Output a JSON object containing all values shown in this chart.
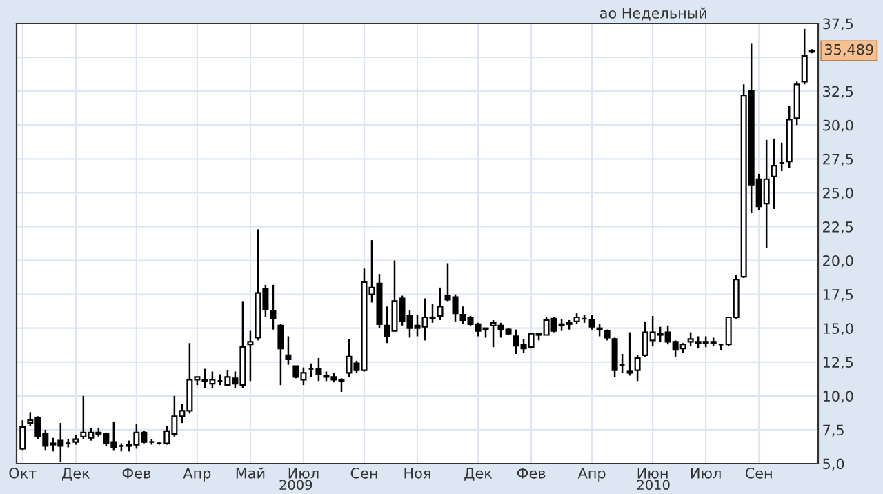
{
  "chart_data": {
    "type": "candlestick",
    "title": "ао Недельный",
    "categories": [
      "Окт",
      null,
      null,
      null,
      null,
      null,
      null,
      "Дек",
      null,
      null,
      null,
      null,
      null,
      null,
      null,
      "Фев",
      null,
      null,
      null,
      null,
      null,
      null,
      null,
      "Апр",
      null,
      null,
      null,
      null,
      null,
      null,
      "Май",
      null,
      null,
      null,
      null,
      null,
      null,
      "Июл",
      null,
      null,
      null,
      null,
      null,
      null,
      null,
      "Сен",
      null,
      null,
      null,
      null,
      null,
      null,
      "Ноя",
      null,
      null,
      null,
      null,
      null,
      null,
      null,
      "Дек",
      null,
      null,
      null,
      null,
      null,
      null,
      "Фев",
      null,
      null,
      null,
      null,
      null,
      null,
      null,
      "Апр",
      null,
      null,
      null,
      null,
      null,
      null,
      null,
      "Июн",
      null,
      null,
      null,
      null,
      null,
      null,
      "Июл",
      null,
      null,
      null,
      null,
      null,
      null,
      "Сен",
      null,
      null,
      null,
      null,
      null,
      null,
      null
    ],
    "ohlc": [
      [
        6.1,
        8.2,
        6.0,
        7.7
      ],
      [
        8.0,
        8.8,
        7.8,
        8.2
      ],
      [
        8.4,
        8.5,
        6.8,
        7.0
      ],
      [
        7.2,
        7.5,
        6.0,
        6.3
      ],
      [
        6.5,
        6.9,
        5.9,
        6.4
      ],
      [
        6.7,
        8.0,
        5.1,
        6.3
      ],
      [
        6.5,
        6.8,
        6.2,
        6.5
      ],
      [
        6.6,
        7.1,
        6.4,
        6.8
      ],
      [
        7.0,
        10.0,
        6.8,
        7.3
      ],
      [
        6.9,
        7.6,
        6.7,
        7.3
      ],
      [
        7.3,
        7.6,
        7.0,
        7.2
      ],
      [
        7.2,
        7.3,
        6.3,
        6.5
      ],
      [
        6.6,
        8.1,
        6.0,
        6.2
      ],
      [
        6.3,
        6.5,
        5.9,
        6.3
      ],
      [
        6.3,
        6.7,
        5.9,
        6.4
      ],
      [
        6.4,
        7.9,
        6.1,
        7.3
      ],
      [
        7.3,
        7.4,
        6.5,
        6.6
      ],
      [
        6.6,
        6.8,
        6.4,
        6.6
      ],
      [
        6.5,
        6.6,
        6.4,
        6.5
      ],
      [
        6.5,
        7.8,
        6.4,
        7.4
      ],
      [
        7.2,
        10.0,
        7.0,
        8.5
      ],
      [
        8.5,
        9.4,
        8.0,
        8.9
      ],
      [
        8.9,
        13.9,
        8.7,
        11.2
      ],
      [
        11.2,
        11.4,
        10.8,
        11.4
      ],
      [
        11.2,
        12.0,
        10.6,
        11.1
      ],
      [
        10.9,
        11.8,
        10.6,
        11.2
      ],
      [
        11.1,
        11.6,
        10.8,
        11.1
      ],
      [
        10.8,
        11.9,
        10.7,
        11.4
      ],
      [
        11.3,
        11.8,
        10.6,
        10.9
      ],
      [
        10.8,
        17.0,
        10.6,
        13.6
      ],
      [
        13.8,
        14.8,
        11.1,
        14.0
      ],
      [
        14.3,
        22.3,
        14.1,
        17.6
      ],
      [
        17.9,
        18.2,
        15.8,
        16.4
      ],
      [
        16.3,
        18.2,
        14.9,
        15.7
      ],
      [
        15.2,
        15.3,
        10.8,
        13.5
      ],
      [
        13.0,
        14.4,
        12.3,
        12.7
      ],
      [
        12.2,
        12.2,
        11.3,
        11.4
      ],
      [
        11.2,
        12.1,
        10.8,
        11.7
      ],
      [
        12.0,
        12.4,
        11.4,
        12.0
      ],
      [
        12.0,
        12.8,
        11.1,
        11.6
      ],
      [
        11.5,
        11.8,
        11.1,
        11.4
      ],
      [
        11.4,
        11.7,
        11.0,
        11.2
      ],
      [
        11.1,
        11.3,
        10.3,
        11.2
      ],
      [
        11.7,
        14.2,
        11.4,
        12.9
      ],
      [
        12.4,
        12.6,
        11.7,
        11.9
      ],
      [
        11.9,
        19.4,
        11.8,
        18.4
      ],
      [
        17.5,
        21.5,
        16.9,
        18.0
      ],
      [
        18.3,
        19.0,
        15.0,
        15.3
      ],
      [
        15.2,
        16.6,
        13.9,
        14.4
      ],
      [
        14.8,
        20.0,
        14.8,
        17.0
      ],
      [
        17.2,
        17.4,
        15.2,
        15.5
      ],
      [
        15.9,
        16.3,
        14.3,
        15.0
      ],
      [
        15.2,
        16.0,
        14.4,
        15.0
      ],
      [
        15.1,
        17.2,
        14.1,
        15.8
      ],
      [
        15.7,
        16.8,
        15.4,
        15.8
      ],
      [
        15.9,
        18.0,
        15.6,
        16.6
      ],
      [
        17.4,
        19.8,
        17.0,
        17.1
      ],
      [
        17.3,
        17.5,
        15.5,
        16.1
      ],
      [
        16.0,
        16.6,
        15.3,
        15.6
      ],
      [
        15.8,
        15.9,
        15.2,
        15.3
      ],
      [
        15.3,
        15.4,
        14.4,
        14.8
      ],
      [
        14.9,
        15.0,
        14.3,
        15.0
      ],
      [
        15.2,
        15.6,
        13.6,
        15.4
      ],
      [
        15.2,
        15.4,
        14.3,
        14.9
      ],
      [
        14.9,
        15.0,
        14.5,
        14.6
      ],
      [
        14.4,
        14.9,
        13.1,
        13.7
      ],
      [
        13.8,
        14.2,
        13.2,
        13.5
      ],
      [
        13.6,
        14.6,
        13.5,
        14.6
      ],
      [
        14.5,
        14.6,
        14.1,
        14.6
      ],
      [
        14.5,
        15.8,
        14.5,
        15.6
      ],
      [
        15.7,
        15.8,
        14.7,
        14.8
      ],
      [
        15.3,
        15.7,
        14.8,
        15.2
      ],
      [
        15.3,
        15.6,
        14.9,
        15.4
      ],
      [
        15.5,
        16.1,
        15.3,
        15.8
      ],
      [
        15.7,
        16.0,
        15.4,
        15.7
      ],
      [
        15.6,
        16.0,
        14.9,
        15.1
      ],
      [
        15.0,
        15.3,
        14.4,
        14.9
      ],
      [
        14.8,
        14.9,
        14.1,
        14.3
      ],
      [
        14.2,
        14.3,
        11.4,
        11.9
      ],
      [
        12.3,
        13.1,
        11.7,
        12.3
      ],
      [
        11.7,
        14.7,
        11.5,
        11.8
      ],
      [
        11.9,
        13.0,
        11.1,
        12.8
      ],
      [
        13.0,
        15.5,
        12.9,
        14.7
      ],
      [
        14.1,
        15.9,
        13.7,
        14.7
      ],
      [
        14.5,
        15.1,
        14.0,
        14.6
      ],
      [
        14.7,
        15.2,
        13.8,
        14.0
      ],
      [
        14.0,
        14.1,
        12.9,
        13.4
      ],
      [
        13.5,
        13.9,
        13.2,
        13.8
      ],
      [
        14.0,
        14.7,
        13.7,
        14.2
      ],
      [
        14.0,
        14.4,
        13.5,
        13.9
      ],
      [
        13.9,
        14.4,
        13.6,
        14.0
      ],
      [
        14.0,
        14.3,
        13.7,
        13.9
      ],
      [
        13.8,
        13.8,
        13.4,
        13.8
      ],
      [
        13.8,
        15.8,
        13.7,
        15.8
      ],
      [
        15.8,
        18.9,
        15.7,
        18.6
      ],
      [
        18.8,
        33.0,
        18.7,
        32.2
      ],
      [
        32.5,
        36.0,
        23.5,
        25.6
      ],
      [
        26.0,
        26.4,
        23.7,
        24.0
      ],
      [
        24.2,
        28.9,
        20.9,
        26.0
      ],
      [
        26.2,
        29.0,
        23.8,
        27.0
      ],
      [
        27.2,
        28.7,
        26.6,
        27.2
      ],
      [
        27.3,
        31.4,
        26.8,
        30.4
      ],
      [
        30.5,
        33.2,
        30.0,
        33.0
      ],
      [
        33.2,
        37.1,
        33.0,
        35.1
      ],
      [
        35.4,
        35.6,
        35.3,
        35.489
      ]
    ],
    "ylim": [
      5.0,
      37.5
    ],
    "yticks": [
      {
        "value": 5.0,
        "label": "5,0"
      },
      {
        "value": 7.5,
        "label": "7,5"
      },
      {
        "value": 10.0,
        "label": "10,0"
      },
      {
        "value": 12.5,
        "label": "12,5"
      },
      {
        "value": 15.0,
        "label": "15,0"
      },
      {
        "value": 17.5,
        "label": "17,5"
      },
      {
        "value": 20.0,
        "label": "20,0"
      },
      {
        "value": 22.5,
        "label": "22,5"
      },
      {
        "value": 25.0,
        "label": "25,0"
      },
      {
        "value": 27.5,
        "label": "27,5"
      },
      {
        "value": 30.0,
        "label": "30,0"
      },
      {
        "value": 32.5,
        "label": "32,5"
      },
      {
        "value": 35.0,
        "label": null
      },
      {
        "value": 37.5,
        "label": "37,5"
      }
    ],
    "grid": true,
    "annotations": [
      {
        "text": "35,489",
        "y": 35.489
      },
      "2009",
      "2010"
    ]
  }
}
